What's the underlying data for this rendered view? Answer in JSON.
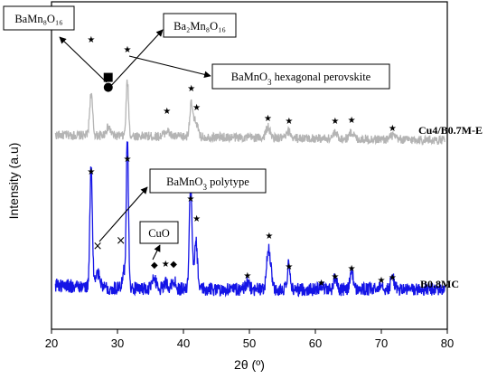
{
  "chart_data": {
    "type": "line",
    "title": "",
    "xlabel": "2θ (º)",
    "ylabel": "Intensity (a.u)",
    "xlim": [
      20,
      80
    ],
    "xticks": [
      20,
      30,
      40,
      50,
      60,
      70,
      80
    ],
    "grid": false,
    "series": [
      {
        "name": "Cu4/B0.7M-E",
        "color": "#b4b4b4",
        "baseline": 0.72,
        "noise": 0.035,
        "peaks": [
          {
            "x": 26.0,
            "h": 0.32,
            "w": 0.22
          },
          {
            "x": 28.6,
            "h": 0.06,
            "w": 0.35
          },
          {
            "x": 31.5,
            "h": 0.42,
            "w": 0.18
          },
          {
            "x": 37.5,
            "h": 0.04,
            "w": 0.4
          },
          {
            "x": 41.2,
            "h": 0.25,
            "w": 0.25
          },
          {
            "x": 41.9,
            "h": 0.12,
            "w": 0.25
          },
          {
            "x": 52.8,
            "h": 0.08,
            "w": 0.3
          },
          {
            "x": 56.0,
            "h": 0.05,
            "w": 0.3
          },
          {
            "x": 63.0,
            "h": 0.04,
            "w": 0.35
          },
          {
            "x": 65.5,
            "h": 0.05,
            "w": 0.35
          },
          {
            "x": 71.7,
            "h": 0.03,
            "w": 0.35
          }
        ]
      },
      {
        "name": "B0.8MC",
        "color": "#1414e6",
        "baseline": 0.0,
        "noise": 0.04,
        "peaks": [
          {
            "x": 26.0,
            "h": 0.72,
            "w": 0.18
          },
          {
            "x": 27.0,
            "h": 0.08,
            "w": 0.4
          },
          {
            "x": 31.0,
            "h": 0.1,
            "w": 0.3
          },
          {
            "x": 31.5,
            "h": 0.88,
            "w": 0.16
          },
          {
            "x": 35.6,
            "h": 0.06,
            "w": 0.3
          },
          {
            "x": 37.3,
            "h": 0.04,
            "w": 0.3
          },
          {
            "x": 38.5,
            "h": 0.05,
            "w": 0.3
          },
          {
            "x": 41.1,
            "h": 0.64,
            "w": 0.2
          },
          {
            "x": 41.9,
            "h": 0.28,
            "w": 0.22
          },
          {
            "x": 49.7,
            "h": 0.04,
            "w": 0.3
          },
          {
            "x": 52.8,
            "h": 0.2,
            "w": 0.22
          },
          {
            "x": 53.2,
            "h": 0.14,
            "w": 0.22
          },
          {
            "x": 56.0,
            "h": 0.16,
            "w": 0.2
          },
          {
            "x": 60.9,
            "h": 0.03,
            "w": 0.3
          },
          {
            "x": 63.0,
            "h": 0.07,
            "w": 0.25
          },
          {
            "x": 65.5,
            "h": 0.12,
            "w": 0.22
          },
          {
            "x": 70.0,
            "h": 0.04,
            "w": 0.3
          },
          {
            "x": 71.7,
            "h": 0.08,
            "w": 0.25
          }
        ]
      }
    ],
    "markers": {
      "star_symbol": "★",
      "cross_symbol": "×",
      "diamond_symbol": "◆",
      "square_symbol": "■",
      "circle_symbol": "●"
    },
    "annotations": {
      "bamn8o16": "BaMn₈O₁₆",
      "ba2mn8o16": "Ba₂Mn₈O₁₆",
      "hexagonal_pre": "BaMnO",
      "hexagonal_sub": "3",
      "hexagonal_post": " hexagonal perovskite",
      "polytype_pre": "BaMnO",
      "polytype_sub": "3",
      "polytype_post": " polytype",
      "cuo": "CuO"
    }
  }
}
